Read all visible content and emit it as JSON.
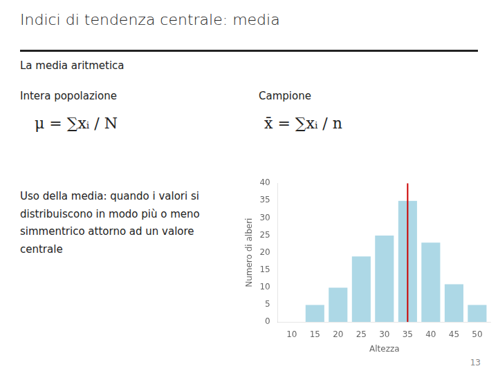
{
  "chart_data": {
    "type": "bar",
    "title": "Indici di tendenza centrale: media",
    "subtitle": "La media aritmetica",
    "annotations": [
      "Intera popolazione",
      "Campione",
      "μ = ∑xᵢ / N",
      "x̄ = ∑xᵢ / n",
      "Uso della media: quando i valori si\ndistribuiscono in modo più o meno\nsimmentrico  attorno ad un valore\ncentrale",
      "13"
    ],
    "x": [
      10,
      15,
      20,
      25,
      30,
      35,
      40,
      45,
      50
    ],
    "values": [
      0,
      5,
      10,
      19,
      25,
      35,
      23,
      11,
      5
    ],
    "color": "#add8e6",
    "xlabel": "Altezza",
    "ylabel": "Numero di alberi",
    "xlim": [
      7,
      53
    ],
    "xticks": [
      10,
      15,
      20,
      25,
      30,
      35,
      40,
      45,
      50
    ],
    "ylim": [
      0,
      40
    ],
    "yticks": [
      0,
      5,
      10,
      15,
      20,
      25,
      30,
      35,
      40
    ],
    "grid": false,
    "reference_lines": [
      {
        "x": 35,
        "color": "#cc0000"
      }
    ]
  }
}
